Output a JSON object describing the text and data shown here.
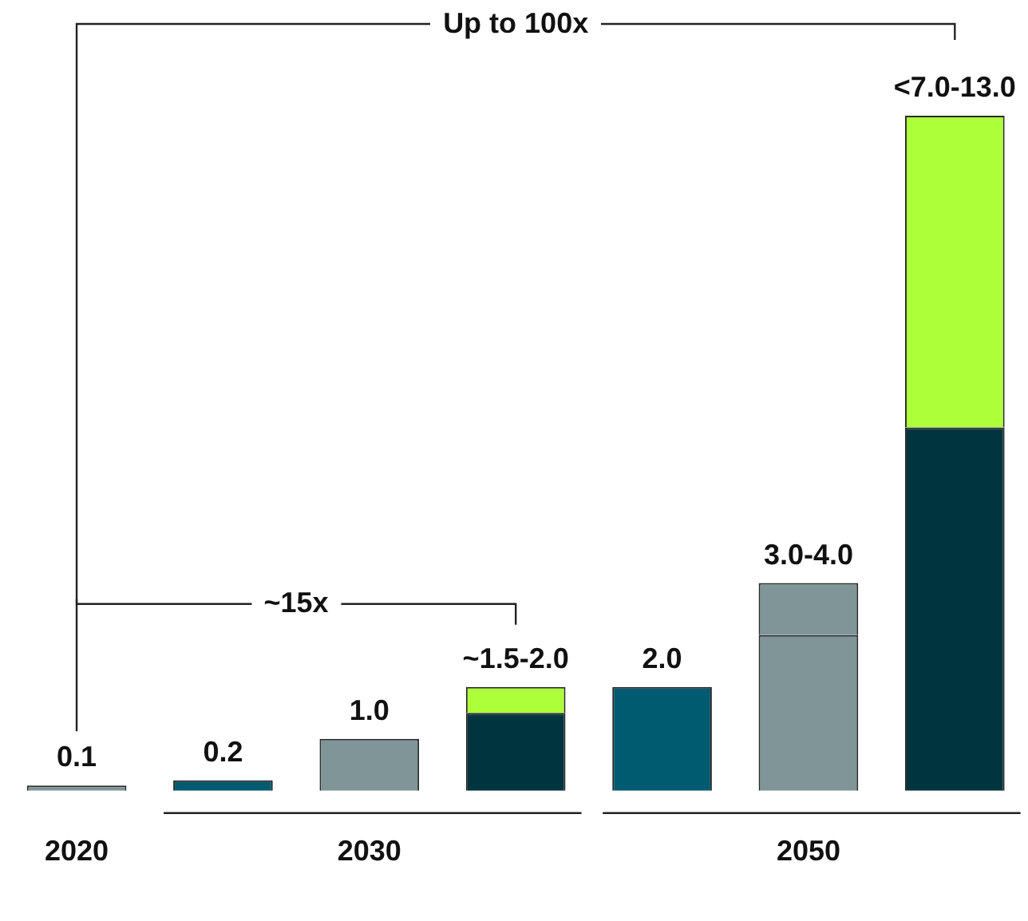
{
  "chart_data": {
    "type": "bar",
    "stacked": true,
    "categories": [
      "2020",
      null,
      "2030",
      null,
      null,
      "2050",
      null
    ],
    "series": [
      {
        "colors": [
          "#7f9598",
          "#005a70",
          "#7f9598",
          "#00343e",
          "#005a70",
          "#7f9598",
          "#00343e"
        ],
        "values": [
          0.1,
          0.2,
          1.0,
          1.5,
          2.0,
          3.0,
          7.0
        ],
        "value_labels": [
          "0.1",
          "0.2",
          "1.0",
          null,
          "2.0",
          null,
          null
        ]
      },
      {
        "colors": [
          null,
          null,
          null,
          "#adff3a",
          null,
          "#7f9598",
          "#adff3a"
        ],
        "values": [
          null,
          null,
          null,
          0.5,
          null,
          1.0,
          6.0
        ],
        "value_labels": [
          null,
          null,
          null,
          "~1.5-2.0",
          null,
          "3.0-4.0",
          "<7.0-13.0"
        ]
      }
    ],
    "annotations": [
      "Up to 100x",
      "~15x"
    ],
    "grid": false,
    "legend": false,
    "tick_labels": "x"
  }
}
